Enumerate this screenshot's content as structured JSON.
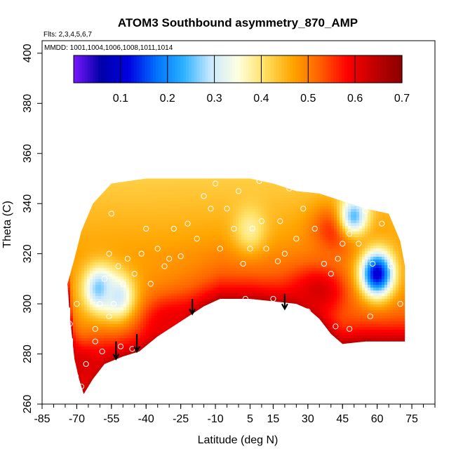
{
  "chart_data": {
    "type": "heatmap",
    "title": "ATOM3 Southbound asymmetry_870_AMP",
    "subtitle_flights": "Flts: 2,3,4,5,6,7",
    "subtitle_dates": "MMDD: 1001,1004,1006,1008,1011,1014",
    "xlabel": "Latitude (deg N)",
    "ylabel": "Theta (C)",
    "xlim": [
      -85,
      85
    ],
    "ylim": [
      260,
      405
    ],
    "x_ticks": [
      -85,
      -70,
      -55,
      -40,
      -25,
      -10,
      5,
      15,
      30,
      45,
      60,
      75
    ],
    "x_minor_step": 5,
    "y_ticks": [
      260,
      280,
      300,
      320,
      340,
      360,
      380,
      400
    ],
    "colorbar": {
      "min": 0.0,
      "max": 0.7,
      "ticks": [
        0.1,
        0.2,
        0.3,
        0.4,
        0.5,
        0.6,
        0.7
      ],
      "colors": [
        "#7a17ff",
        "#0000a8",
        "#0000e0",
        "#0070ff",
        "#2ab0ff",
        "#c8e8ff",
        "#ffffe0",
        "#ffe060",
        "#ffa500",
        "#ff6000",
        "#ff0000",
        "#c00000",
        "#8b0000"
      ]
    },
    "field": {
      "grid": "lat x theta cells, value = asymmetry amplitude",
      "upper_boundary": [
        [
          -74,
          308
        ],
        [
          -71,
          318
        ],
        [
          -68,
          329
        ],
        [
          -63,
          340
        ],
        [
          -55,
          348
        ],
        [
          -40,
          350
        ],
        [
          -25,
          350
        ],
        [
          -10,
          350
        ],
        [
          5,
          350
        ],
        [
          15,
          348
        ],
        [
          25,
          345
        ],
        [
          35,
          344
        ],
        [
          45,
          341
        ],
        [
          55,
          338
        ],
        [
          65,
          336
        ],
        [
          70,
          325
        ],
        [
          72,
          315
        ]
      ],
      "lower_boundary": [
        [
          -74,
          308
        ],
        [
          -73,
          295
        ],
        [
          -71,
          278
        ],
        [
          -69,
          270
        ],
        [
          -67,
          264
        ],
        [
          -63,
          270
        ],
        [
          -58,
          276
        ],
        [
          -50,
          279
        ],
        [
          -43,
          281
        ],
        [
          -35,
          287
        ],
        [
          -25,
          293
        ],
        [
          -15,
          299
        ],
        [
          -8,
          302
        ],
        [
          5,
          302
        ],
        [
          15,
          301
        ],
        [
          25,
          300
        ],
        [
          30,
          298
        ],
        [
          35,
          294
        ],
        [
          40,
          288
        ],
        [
          45,
          284
        ],
        [
          55,
          285
        ],
        [
          65,
          285
        ],
        [
          72,
          285
        ]
      ],
      "features": [
        {
          "kind": "high",
          "lat": -68,
          "theta": 276,
          "value": 0.62
        },
        {
          "kind": "high",
          "lat": -30,
          "theta": 292,
          "value": 0.6
        },
        {
          "kind": "high",
          "lat": 35,
          "theta": 305,
          "value": 0.62
        },
        {
          "kind": "high",
          "lat": 45,
          "theta": 330,
          "value": 0.6
        },
        {
          "kind": "low",
          "lat": -60,
          "theta": 306,
          "value": 0.25
        },
        {
          "kind": "low",
          "lat": -52,
          "theta": 303,
          "value": 0.3
        },
        {
          "kind": "low",
          "lat": 60,
          "theta": 312,
          "value": 0.1
        },
        {
          "kind": "low",
          "lat": 50,
          "theta": 335,
          "value": 0.25
        },
        {
          "kind": "low",
          "lat": 5,
          "theta": 330,
          "value": 0.38
        }
      ]
    },
    "observation_points": [
      [
        -68,
        267
      ],
      [
        -66,
        276
      ],
      [
        -62,
        290
      ],
      [
        -60,
        300
      ],
      [
        -58,
        310
      ],
      [
        -56,
        320
      ],
      [
        -55,
        336
      ],
      [
        -52,
        315
      ],
      [
        -50,
        308
      ],
      [
        -48,
        318
      ],
      [
        -45,
        312
      ],
      [
        -42,
        320
      ],
      [
        -40,
        330
      ],
      [
        -38,
        308
      ],
      [
        -35,
        322
      ],
      [
        -32,
        315
      ],
      [
        -30,
        318
      ],
      [
        -28,
        330
      ],
      [
        -25,
        319
      ],
      [
        -22,
        332
      ],
      [
        -18,
        326
      ],
      [
        -15,
        343
      ],
      [
        -12,
        338
      ],
      [
        -10,
        348
      ],
      [
        -8,
        322
      ],
      [
        -5,
        338
      ],
      [
        -2,
        330
      ],
      [
        0,
        345
      ],
      [
        2,
        316
      ],
      [
        3,
        302
      ],
      [
        5,
        322
      ],
      [
        6,
        330
      ],
      [
        9,
        349
      ],
      [
        10,
        333
      ],
      [
        12,
        322
      ],
      [
        15,
        302
      ],
      [
        17,
        317
      ],
      [
        18,
        333
      ],
      [
        20,
        320
      ],
      [
        22,
        346
      ],
      [
        25,
        326
      ],
      [
        28,
        338
      ],
      [
        30,
        297
      ],
      [
        33,
        330
      ],
      [
        37,
        316
      ],
      [
        40,
        312
      ],
      [
        43,
        318
      ],
      [
        45,
        324
      ],
      [
        48,
        328
      ],
      [
        52,
        324
      ],
      [
        55,
        337
      ],
      [
        58,
        316
      ],
      [
        62,
        332
      ],
      [
        66,
        315
      ],
      [
        70,
        300
      ],
      [
        -70,
        300
      ],
      [
        -73,
        292
      ],
      [
        -59,
        281
      ],
      [
        -51,
        283
      ],
      [
        -46,
        282
      ],
      [
        -47,
        278
      ],
      [
        -56,
        295
      ],
      [
        -54,
        300
      ],
      [
        -62,
        285
      ],
      [
        42,
        291
      ],
      [
        48,
        290
      ],
      [
        51,
        283
      ],
      [
        57,
        295
      ]
    ],
    "arrows": [
      {
        "lat": -53,
        "theta_from": 285,
        "theta_to": 278
      },
      {
        "lat": -44,
        "theta_from": 288,
        "theta_to": 281
      },
      {
        "lat": -20,
        "theta_from": 302,
        "theta_to": 296
      },
      {
        "lat": 20,
        "theta_from": 304,
        "theta_to": 298
      }
    ]
  }
}
